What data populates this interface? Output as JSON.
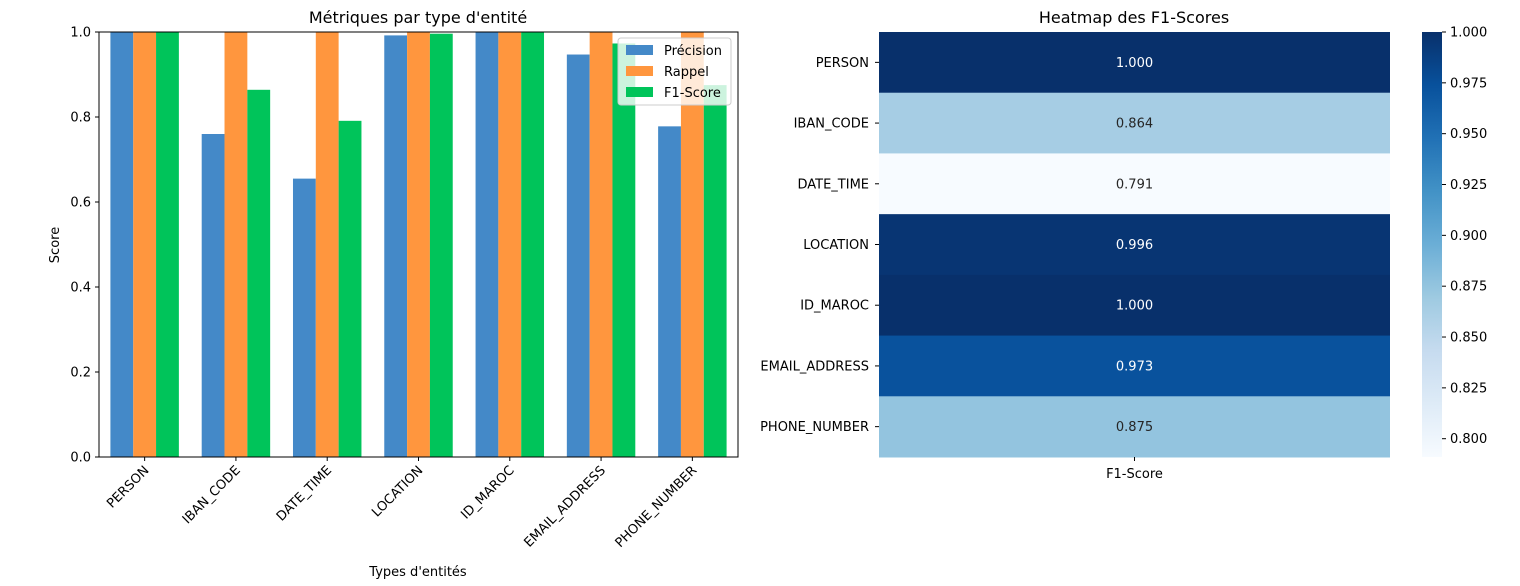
{
  "chart_data": [
    {
      "type": "bar",
      "title": "Métriques par type d'entité",
      "xlabel": "Types d'entités",
      "ylabel": "Score",
      "ylim": [
        0,
        1.0
      ],
      "yticks": [
        "0.0",
        "0.2",
        "0.4",
        "0.6",
        "0.8",
        "1.0"
      ],
      "categories": [
        "PERSON",
        "IBAN_CODE",
        "DATE_TIME",
        "LOCATION",
        "ID_MAROC",
        "EMAIL_ADDRESS",
        "PHONE_NUMBER"
      ],
      "series": [
        {
          "name": "Précision",
          "color": "#4489c8",
          "values": [
            1.0,
            0.76,
            0.655,
            0.992,
            1.0,
            0.947,
            0.778
          ]
        },
        {
          "name": "Rappel",
          "color": "#ff963e",
          "values": [
            1.0,
            1.0,
            1.0,
            1.0,
            1.0,
            1.0,
            1.0
          ]
        },
        {
          "name": "F1-Score",
          "color": "#00c45a",
          "values": [
            1.0,
            0.864,
            0.791,
            0.996,
            1.0,
            0.973,
            0.875
          ]
        }
      ],
      "legend_position": "top-right",
      "grid": false
    },
    {
      "type": "heatmap",
      "title": "Heatmap des F1-Scores",
      "rows": [
        "PERSON",
        "IBAN_CODE",
        "DATE_TIME",
        "LOCATION",
        "ID_MAROC",
        "EMAIL_ADDRESS",
        "PHONE_NUMBER"
      ],
      "columns": [
        "F1-Score"
      ],
      "values": [
        1.0,
        0.864,
        0.791,
        0.996,
        1.0,
        0.973,
        0.875
      ],
      "value_labels": [
        "1.000",
        "0.864",
        "0.791",
        "0.996",
        "1.000",
        "0.973",
        "0.875"
      ],
      "colorscale": "Blues",
      "vmin": 0.791,
      "vmax": 1.0,
      "colorbar_ticks": [
        "0.800",
        "0.825",
        "0.850",
        "0.875",
        "0.900",
        "0.925",
        "0.950",
        "0.975",
        "1.000"
      ],
      "colorbar_tick_values": [
        0.8,
        0.825,
        0.85,
        0.875,
        0.9,
        0.925,
        0.95,
        0.975,
        1.0
      ]
    }
  ]
}
